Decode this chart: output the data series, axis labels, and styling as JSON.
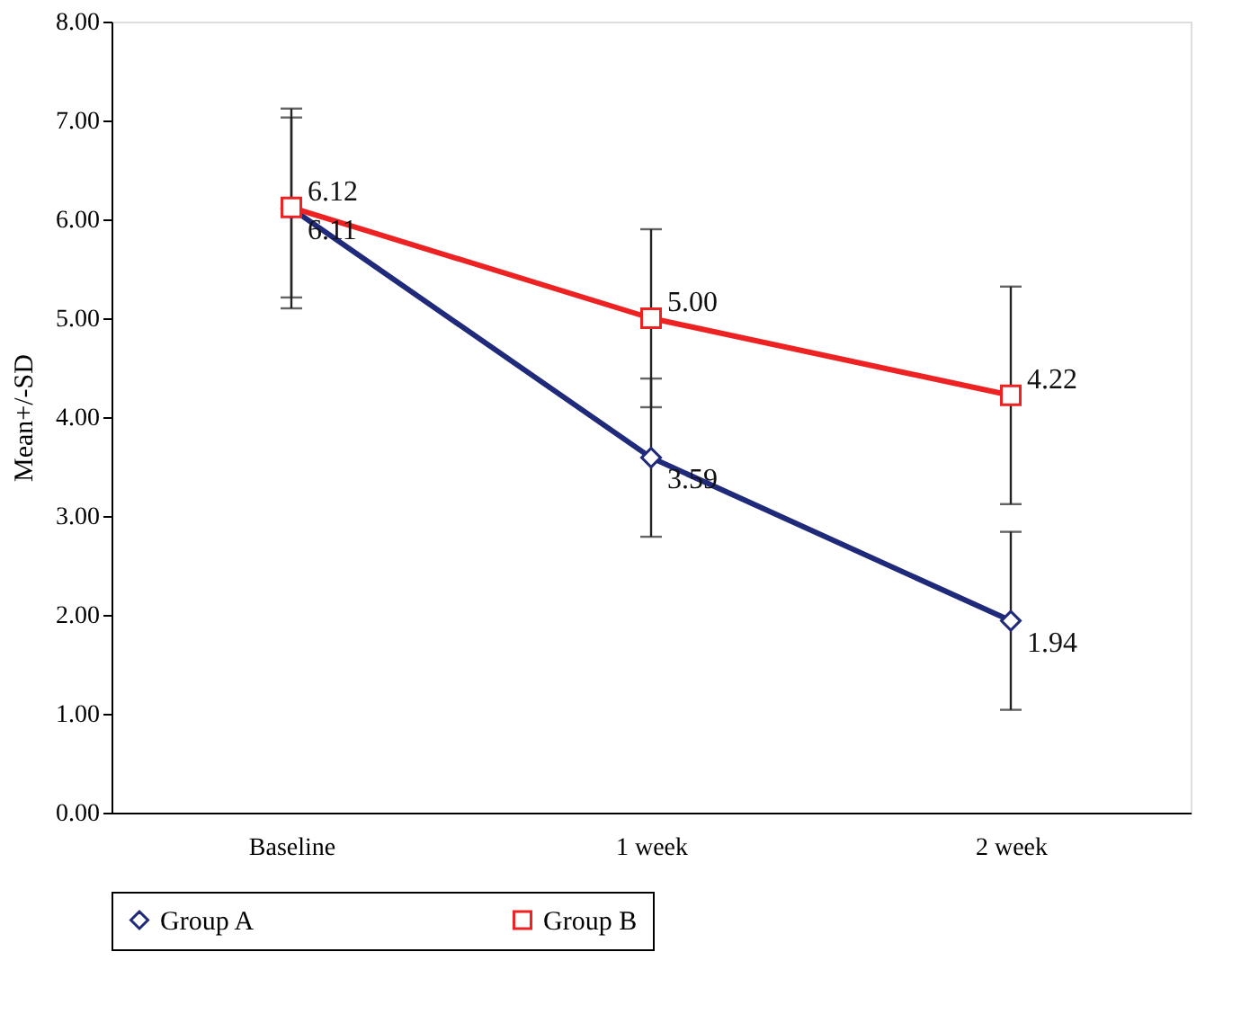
{
  "chart_data": {
    "type": "line",
    "ylabel": "Mean+/-SD",
    "categories": [
      "Baseline",
      "1 week",
      "2 week"
    ],
    "series": [
      {
        "name": "Group A",
        "color": "#1f2a7a",
        "values": [
          6.11,
          3.59,
          1.94
        ],
        "errors": [
          1.01,
          0.8,
          0.9
        ],
        "marker": "diamond"
      },
      {
        "name": "Group B",
        "color": "#ee2222",
        "values": [
          6.12,
          5.0,
          4.22
        ],
        "errors": [
          0.91,
          0.9,
          1.1
        ],
        "marker": "square"
      }
    ],
    "ylim": [
      0,
      8
    ],
    "yticks": [
      {
        "value": 0,
        "label": "0.00"
      },
      {
        "value": 1,
        "label": "1.00"
      },
      {
        "value": 2,
        "label": "2.00"
      },
      {
        "value": 3,
        "label": "3.00"
      },
      {
        "value": 4,
        "label": "4.00"
      },
      {
        "value": 5,
        "label": "5.00"
      },
      {
        "value": 6,
        "label": "6.00"
      },
      {
        "value": 7,
        "label": "7.00"
      },
      {
        "value": 8,
        "label": "8.00"
      }
    ],
    "value_labels": [
      [
        "6.11",
        "3.59",
        "1.94"
      ],
      [
        "6.12",
        "5.00",
        "4.22"
      ]
    ],
    "grid": false,
    "legend": "bottom",
    "line_style": "solid"
  }
}
